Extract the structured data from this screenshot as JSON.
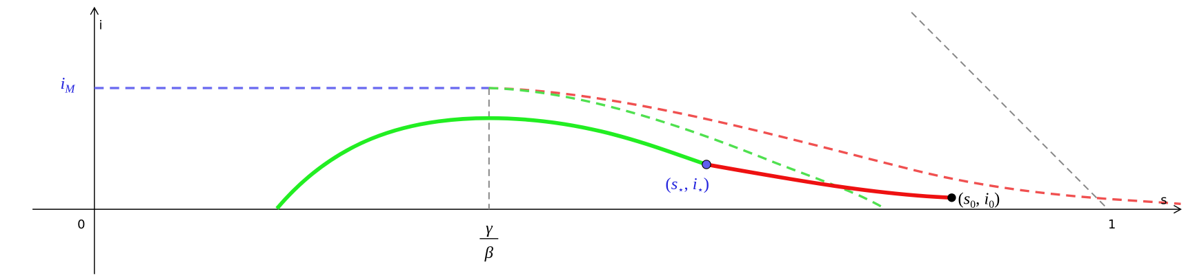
{
  "axes": {
    "y_label": "i",
    "x_label": "s",
    "origin": "0",
    "x_one": "1"
  },
  "i_max_label": {
    "base": "i",
    "sub": "M"
  },
  "threshold_label": {
    "numerator": "γ",
    "denominator": "β"
  },
  "star_point_label": {
    "open": "(",
    "s": "s",
    "s_sub": "⋆",
    "comma": ", ",
    "i": "i",
    "i_sub": "⋆",
    "close": ")"
  },
  "initial_point_label": {
    "open": "(",
    "s": "s",
    "s_sub": "0",
    "comma": ", ",
    "i": "i",
    "i_sub": "0",
    "close": ")"
  }
}
